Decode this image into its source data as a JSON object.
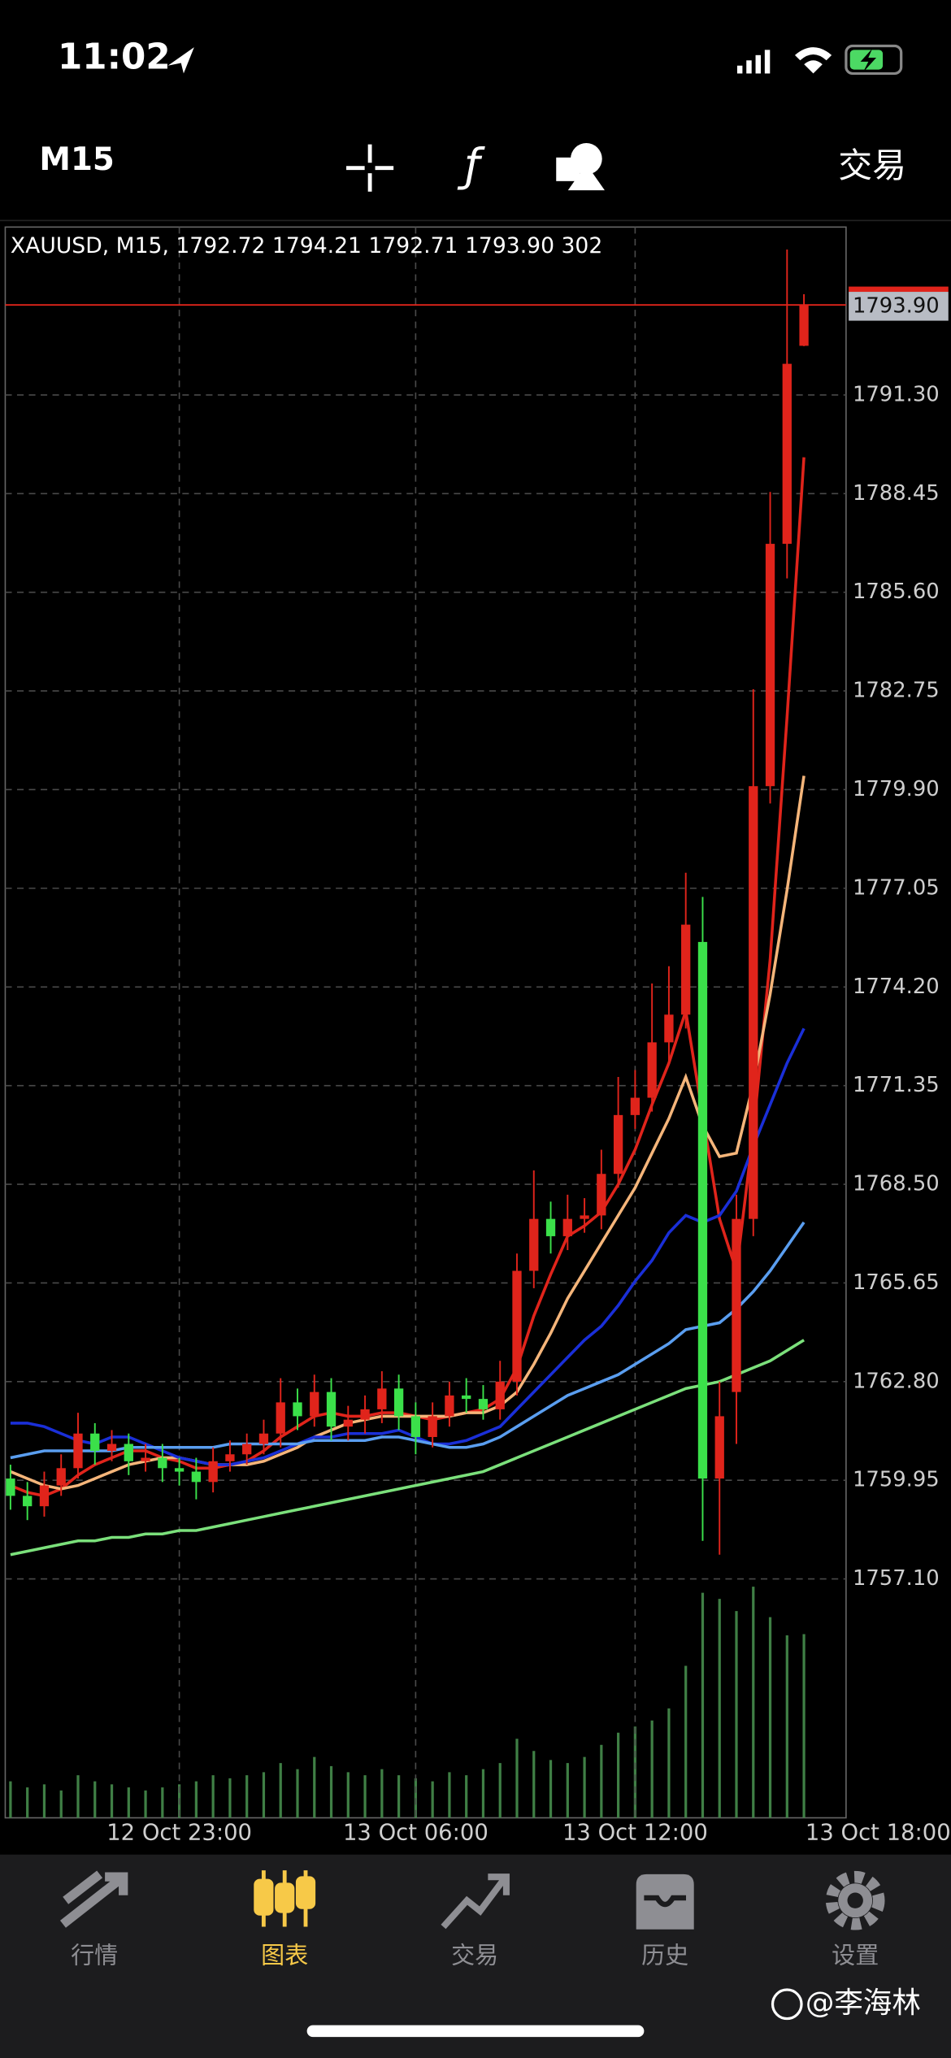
{
  "status_bar": {
    "time": "11:02"
  },
  "toolbar": {
    "timeframe": "M15",
    "action": "交易"
  },
  "chart_data": {
    "type": "candlestick",
    "info": "XAUUSD, M15, 1792.72 1794.21 1792.71 1793.90 302",
    "categories": [
      null,
      null,
      null,
      null,
      null,
      null,
      null,
      null,
      null,
      null,
      "12 Oct 23:00",
      null,
      null,
      null,
      null,
      null,
      null,
      null,
      null,
      null,
      null,
      null,
      null,
      null,
      "13 Oct 06:00",
      null,
      null,
      null,
      null,
      null,
      null,
      null,
      null,
      null,
      null,
      null,
      null,
      "13 Oct 12:00",
      null,
      null,
      null,
      null,
      null,
      null,
      null,
      null,
      null,
      null
    ],
    "x_end_label": "13 Oct 18:00",
    "open": [
      1760.0,
      1759.5,
      1759.2,
      1759.8,
      1760.3,
      1761.3,
      1760.8,
      1761.0,
      1760.5,
      1760.6,
      1760.3,
      1760.2,
      1759.9,
      1760.5,
      1760.7,
      1761.0,
      1761.3,
      1762.2,
      1761.8,
      1762.5,
      1761.5,
      1761.7,
      1762.0,
      1762.6,
      1761.8,
      1761.2,
      1761.8,
      1762.4,
      1762.3,
      1762.0,
      1762.8,
      1766.0,
      1767.5,
      1767.0,
      1767.5,
      1767.6,
      1768.8,
      1770.5,
      1771.0,
      1772.6,
      1773.4,
      1775.5,
      1760.0,
      1762.5,
      1767.5,
      1780.0,
      1787.0,
      1792.72
    ],
    "high": [
      1760.4,
      1759.9,
      1760.2,
      1760.7,
      1761.9,
      1761.6,
      1761.4,
      1761.3,
      1761.0,
      1761.0,
      1760.6,
      1760.6,
      1760.9,
      1761.1,
      1761.3,
      1761.7,
      1762.9,
      1762.6,
      1763.0,
      1762.9,
      1762.1,
      1762.4,
      1763.1,
      1763.0,
      1762.2,
      1762.2,
      1762.8,
      1762.9,
      1762.7,
      1763.4,
      1766.5,
      1768.9,
      1768.0,
      1768.2,
      1768.1,
      1769.5,
      1771.6,
      1771.8,
      1774.3,
      1774.8,
      1777.5,
      1776.8,
      1762.8,
      1768.2,
      1782.8,
      1788.5,
      1795.5,
      1794.21
    ],
    "low": [
      1759.1,
      1758.8,
      1758.9,
      1759.5,
      1760.0,
      1760.4,
      1760.5,
      1760.1,
      1760.2,
      1759.9,
      1759.8,
      1759.4,
      1759.6,
      1760.2,
      1760.4,
      1760.7,
      1760.9,
      1761.4,
      1761.5,
      1761.1,
      1761.1,
      1761.3,
      1761.6,
      1761.4,
      1760.7,
      1760.9,
      1761.5,
      1761.9,
      1761.7,
      1761.7,
      1762.4,
      1765.5,
      1766.5,
      1766.6,
      1767.1,
      1767.2,
      1768.4,
      1770.1,
      1770.6,
      1772.0,
      1773.0,
      1758.2,
      1757.8,
      1761.0,
      1767.0,
      1779.5,
      1786.0,
      1792.71
    ],
    "close": [
      1759.5,
      1759.2,
      1759.8,
      1760.3,
      1761.3,
      1760.8,
      1761.0,
      1760.5,
      1760.6,
      1760.3,
      1760.2,
      1759.9,
      1760.5,
      1760.7,
      1761.0,
      1761.3,
      1762.2,
      1761.8,
      1762.5,
      1761.5,
      1761.7,
      1762.0,
      1762.6,
      1761.8,
      1761.2,
      1761.8,
      1762.4,
      1762.3,
      1762.0,
      1762.8,
      1766.0,
      1767.5,
      1767.0,
      1767.5,
      1767.6,
      1768.8,
      1770.5,
      1771.0,
      1772.6,
      1773.4,
      1776.0,
      1760.0,
      1761.8,
      1767.5,
      1780.0,
      1787.0,
      1792.2,
      1793.9
    ],
    "up_color": "#e0241b",
    "down_color": "#3be04a",
    "volume": {
      "color": "#3f7f45",
      "ylim": [
        0,
        600
      ],
      "values": [
        60,
        50,
        55,
        45,
        70,
        60,
        55,
        50,
        45,
        50,
        55,
        60,
        70,
        65,
        70,
        75,
        90,
        80,
        100,
        85,
        75,
        70,
        80,
        70,
        65,
        60,
        75,
        70,
        80,
        90,
        130,
        110,
        95,
        90,
        100,
        120,
        140,
        150,
        160,
        180,
        250,
        370,
        360,
        340,
        380,
        330,
        300,
        302
      ]
    },
    "series": [
      {
        "color": "#e0241b",
        "values": [
          1759.8,
          1759.6,
          1759.5,
          1759.7,
          1760.1,
          1760.4,
          1760.6,
          1760.8,
          1760.8,
          1760.6,
          1760.5,
          1760.3,
          1760.3,
          1760.4,
          1760.5,
          1760.8,
          1761.2,
          1761.5,
          1761.8,
          1761.9,
          1761.8,
          1761.8,
          1761.9,
          1761.9,
          1761.8,
          1761.7,
          1761.8,
          1761.9,
          1762.0,
          1762.3,
          1763.2,
          1764.7,
          1765.9,
          1767.0,
          1767.3,
          1767.7,
          1768.5,
          1769.5,
          1770.8,
          1772.0,
          1773.5,
          1770.5,
          1767.5,
          1766.0,
          1770.0,
          1775.0,
          1782.0,
          1789.5
        ]
      },
      {
        "color": "#f5b57a",
        "values": [
          1760.2,
          1760.0,
          1759.8,
          1759.7,
          1759.8,
          1760.0,
          1760.2,
          1760.4,
          1760.5,
          1760.6,
          1760.6,
          1760.5,
          1760.4,
          1760.4,
          1760.4,
          1760.5,
          1760.7,
          1760.9,
          1761.2,
          1761.4,
          1761.6,
          1761.7,
          1761.8,
          1761.8,
          1761.8,
          1761.8,
          1761.8,
          1761.9,
          1761.9,
          1762.1,
          1762.5,
          1763.3,
          1764.2,
          1765.2,
          1766.0,
          1766.8,
          1767.6,
          1768.4,
          1769.4,
          1770.4,
          1771.6,
          1770.2,
          1769.3,
          1769.4,
          1771.4,
          1774.0,
          1777.0,
          1780.3
        ]
      },
      {
        "color": "#1a2fd8",
        "values": [
          1761.6,
          1761.6,
          1761.5,
          1761.3,
          1761.1,
          1761.0,
          1761.2,
          1761.2,
          1761.0,
          1760.8,
          1760.6,
          1760.5,
          1760.4,
          1760.4,
          1760.5,
          1760.6,
          1760.8,
          1761.0,
          1761.2,
          1761.2,
          1761.3,
          1761.3,
          1761.3,
          1761.4,
          1761.2,
          1761.0,
          1761.0,
          1761.1,
          1761.3,
          1761.5,
          1762.0,
          1762.5,
          1763.0,
          1763.5,
          1764.0,
          1764.4,
          1765.0,
          1765.7,
          1766.3,
          1767.1,
          1767.6,
          1767.4,
          1767.6,
          1768.3,
          1769.6,
          1770.8,
          1772.0,
          1773.0
        ]
      },
      {
        "color": "#5a9ef0",
        "values": [
          1760.6,
          1760.7,
          1760.8,
          1760.8,
          1760.8,
          1760.8,
          1760.8,
          1760.9,
          1760.9,
          1760.9,
          1760.9,
          1760.9,
          1760.9,
          1761.0,
          1761.0,
          1761.0,
          1761.0,
          1761.0,
          1761.1,
          1761.1,
          1761.1,
          1761.1,
          1761.2,
          1761.2,
          1761.1,
          1761.0,
          1760.9,
          1760.9,
          1761.0,
          1761.2,
          1761.5,
          1761.8,
          1762.1,
          1762.4,
          1762.6,
          1762.8,
          1763.0,
          1763.3,
          1763.6,
          1763.9,
          1764.3,
          1764.4,
          1764.5,
          1764.9,
          1765.4,
          1766.0,
          1766.7,
          1767.4
        ]
      },
      {
        "color": "#7be07b",
        "values": [
          1757.8,
          1757.9,
          1758.0,
          1758.1,
          1758.2,
          1758.2,
          1758.3,
          1758.3,
          1758.4,
          1758.4,
          1758.5,
          1758.5,
          1758.6,
          1758.7,
          1758.8,
          1758.9,
          1759.0,
          1759.1,
          1759.2,
          1759.3,
          1759.4,
          1759.5,
          1759.6,
          1759.7,
          1759.8,
          1759.9,
          1760.0,
          1760.1,
          1760.2,
          1760.4,
          1760.6,
          1760.8,
          1761.0,
          1761.2,
          1761.4,
          1761.6,
          1761.8,
          1762.0,
          1762.2,
          1762.4,
          1762.6,
          1762.7,
          1762.8,
          1763.0,
          1763.2,
          1763.4,
          1763.7,
          1764.0
        ]
      }
    ],
    "ylim": [
      1750.2,
      1796.15
    ],
    "yticks": [
      {
        "value": 1757.1,
        "label": "1757.10"
      },
      1759.95,
      {
        "value": 1762.8,
        "label": "1762.80"
      },
      1765.65,
      {
        "value": 1768.5,
        "label": "1768.50"
      },
      1771.35,
      {
        "value": 1774.2,
        "label": "1774.20"
      },
      1777.05,
      {
        "value": 1779.9,
        "label": "1779.90"
      },
      1782.75,
      {
        "value": 1785.6,
        "label": "1785.60"
      },
      1788.45,
      {
        "value": 1791.3,
        "label": "1791.30"
      }
    ],
    "price_line": {
      "value": 1793.9,
      "label": "1793.90",
      "color": "#e0241b"
    },
    "grid": true
  },
  "tab_bar": {
    "active_color": "#f7c948",
    "color": "#8e8e93",
    "tabs": [
      {
        "label": "行情",
        "active": false
      },
      {
        "label": "图表",
        "active": true
      },
      {
        "label": "交易",
        "active": false
      },
      {
        "label": "历史",
        "active": false
      },
      {
        "label": "设置",
        "active": false
      }
    ]
  },
  "watermark": "@李海林"
}
